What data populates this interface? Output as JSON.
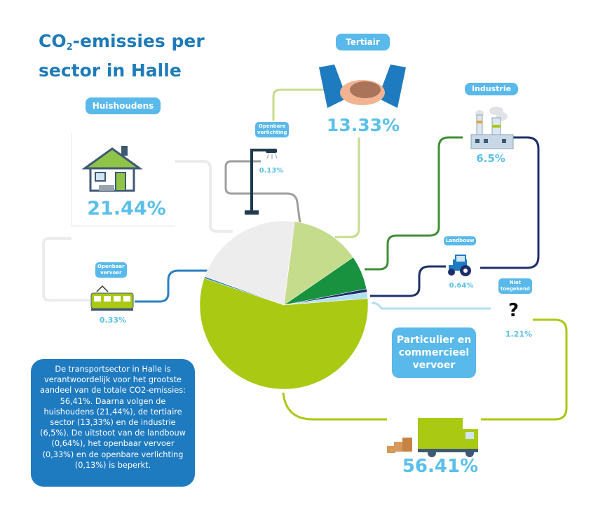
{
  "title": {
    "line1_a": "CO",
    "line1_sub": "2",
    "line1_b": "-emissies per",
    "line2": "sector in Halle"
  },
  "labels": {
    "huishoudens": "Huishoudens",
    "tertiair": "Tertiair",
    "industrie": "Industrie",
    "openbare_verlichting": [
      "Openbare",
      "verlichting"
    ],
    "openbaar_vervoer": [
      "Openbaar",
      "vervoer"
    ],
    "landbouw": "Landbouw",
    "niet_toegekend": [
      "Niet",
      "toegekend"
    ],
    "particulier": [
      "Particulier en",
      "commercieel",
      "vervoer"
    ]
  },
  "percentages": {
    "huishoudens": "21.44%",
    "tertiair": "13.33%",
    "industrie": "6.5%",
    "openbare_verlichting": "0.13%",
    "openbaar_vervoer": "0.33%",
    "landbouw": "0.64%",
    "niet_toegekend": "1.21%",
    "particulier": "56.41%"
  },
  "question_mark": "?",
  "info_text": "De transportsector in Halle is verantwoordelijk voor het grootste aandeel van de totale CO2-emissies: 56,41%. Daarna volgen de huishoudens (21,44%), de tertiaire sector (13,33%) en de industrie (6,5%). De uitstoot van de landbouw (0,64%), het openbaar vervoer (0,33%) en de openbare verlichting (0,13%) is beperkt.",
  "chart_data": {
    "type": "pie",
    "title": "CO2-emissies per sector in Halle",
    "slices": [
      {
        "label": "Openbare verlichting",
        "value": 0.13,
        "color": "#9e9e9e"
      },
      {
        "label": "Tertiair",
        "value": 13.33,
        "color": "#c5dc8c"
      },
      {
        "label": "Industrie",
        "value": 6.5,
        "color": "#18923f"
      },
      {
        "label": "Landbouw",
        "value": 0.64,
        "color": "#1e2f6b"
      },
      {
        "label": "Niet toegekend",
        "value": 1.21,
        "color": "#b3dff3"
      },
      {
        "label": "Particulier en commercieel vervoer",
        "value": 56.41,
        "color": "#a9c913"
      },
      {
        "label": "Openbaar vervoer",
        "value": 0.33,
        "color": "#2d7fc3"
      },
      {
        "label": "Huishoudens",
        "value": 21.44,
        "color": "#ededed"
      }
    ]
  },
  "colors": {
    "accent": "#59b9ea",
    "title": "#1f7bb8",
    "info_bg": "#1f7bc0"
  }
}
